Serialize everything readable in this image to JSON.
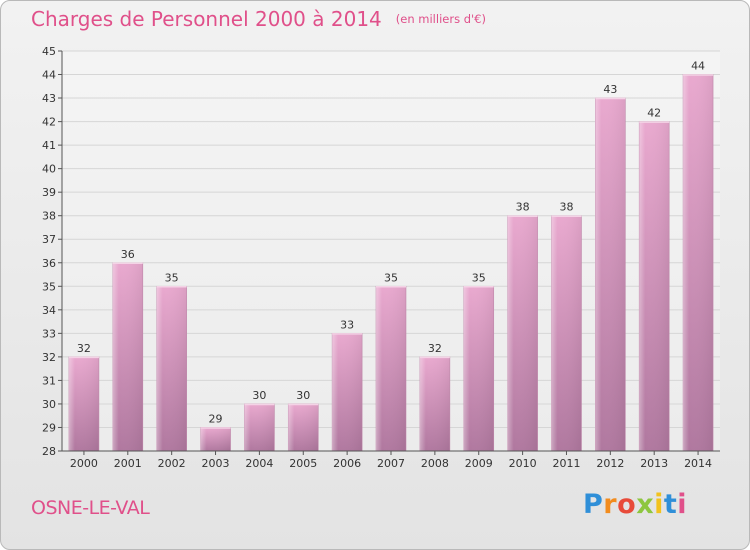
{
  "title": "Charges de Personnel 2000 à 2014",
  "unit": "(en milliers d'€)",
  "commune": "OSNE-LE-VAL",
  "brand": {
    "text": "Proxiti",
    "letters": [
      "P",
      "r",
      "o",
      "x",
      "i",
      "t",
      "i"
    ]
  },
  "colors": {
    "accent": "#e0508a",
    "bar_top": "#e7a7cc",
    "bar_bottom": "#b0789f",
    "background": "#eaeaea"
  },
  "chart_data": {
    "type": "bar",
    "title": "Charges de Personnel 2000 à 2014",
    "xlabel": "",
    "ylabel": "",
    "categories": [
      "2000",
      "2001",
      "2002",
      "2003",
      "2004",
      "2005",
      "2006",
      "2007",
      "2008",
      "2009",
      "2010",
      "2011",
      "2012",
      "2013",
      "2014"
    ],
    "values": [
      32,
      36,
      35,
      29,
      30,
      30,
      33,
      35,
      32,
      35,
      38,
      38,
      43,
      42,
      44
    ],
    "ylim": [
      28,
      45
    ],
    "yticks": [
      28,
      29,
      30,
      31,
      32,
      33,
      34,
      35,
      36,
      37,
      38,
      39,
      40,
      41,
      42,
      43,
      44,
      45
    ],
    "grid": true
  }
}
